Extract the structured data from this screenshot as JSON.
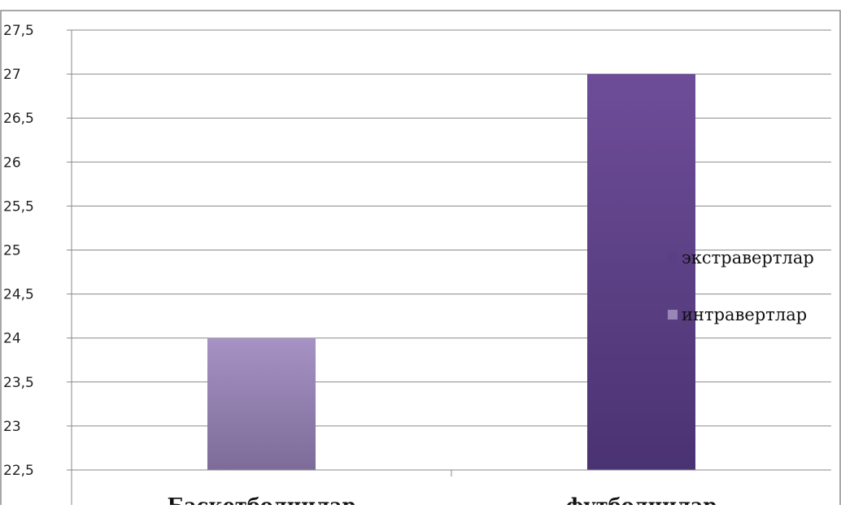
{
  "chart_data": {
    "type": "bar",
    "categories": [
      "Баскетболчилар",
      "футболчилар"
    ],
    "series": [
      {
        "name": "экстравертлар",
        "color": "#5a3f86",
        "values": [
          null,
          27
        ]
      },
      {
        "name": "интравертлар",
        "color": "#9986b6",
        "values": [
          24,
          null
        ]
      }
    ],
    "title": "",
    "xlabel": "",
    "ylabel": "",
    "ylim": [
      22.5,
      27.5
    ],
    "yticks": [
      "22,5",
      "23",
      "23,5",
      "24",
      "24,5",
      "25",
      "25,5",
      "26",
      "26,5",
      "27",
      "27,5"
    ],
    "grid": true,
    "legend_position": "right"
  }
}
